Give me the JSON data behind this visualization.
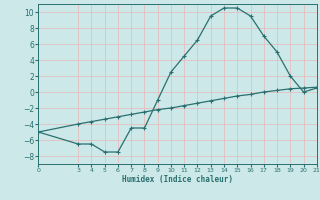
{
  "xlabel": "Humidex (Indice chaleur)",
  "background_color": "#cce8e8",
  "grid_color": "#b8d4d4",
  "line_color": "#2a7070",
  "spine_color": "#2a7070",
  "xlim": [
    0,
    21
  ],
  "ylim": [
    -9,
    11
  ],
  "xticks": [
    0,
    3,
    4,
    5,
    6,
    7,
    8,
    9,
    10,
    11,
    12,
    13,
    14,
    15,
    16,
    17,
    18,
    19,
    20,
    21
  ],
  "yticks": [
    -8,
    -6,
    -4,
    -2,
    0,
    2,
    4,
    6,
    8,
    10
  ],
  "curve1_x": [
    0,
    3,
    4,
    5,
    6,
    7,
    8,
    9,
    10,
    11,
    12,
    13,
    14,
    15,
    16,
    17,
    18,
    19,
    20,
    21
  ],
  "curve1_y": [
    -5.0,
    -6.5,
    -6.5,
    -7.5,
    -7.5,
    -4.5,
    -4.5,
    -1.0,
    2.5,
    4.5,
    6.5,
    9.5,
    10.5,
    10.5,
    9.5,
    7.0,
    5.0,
    2.0,
    0.0,
    0.5
  ],
  "curve2_x": [
    0,
    3,
    4,
    5,
    6,
    7,
    8,
    9,
    10,
    11,
    12,
    13,
    14,
    15,
    16,
    17,
    18,
    19,
    20,
    21
  ],
  "curve2_y": [
    -5.0,
    -4.0,
    -3.7,
    -3.4,
    -3.1,
    -2.8,
    -2.5,
    -2.2,
    -2.0,
    -1.7,
    -1.4,
    -1.1,
    -0.8,
    -0.5,
    -0.3,
    0.0,
    0.2,
    0.4,
    0.5,
    0.6
  ]
}
